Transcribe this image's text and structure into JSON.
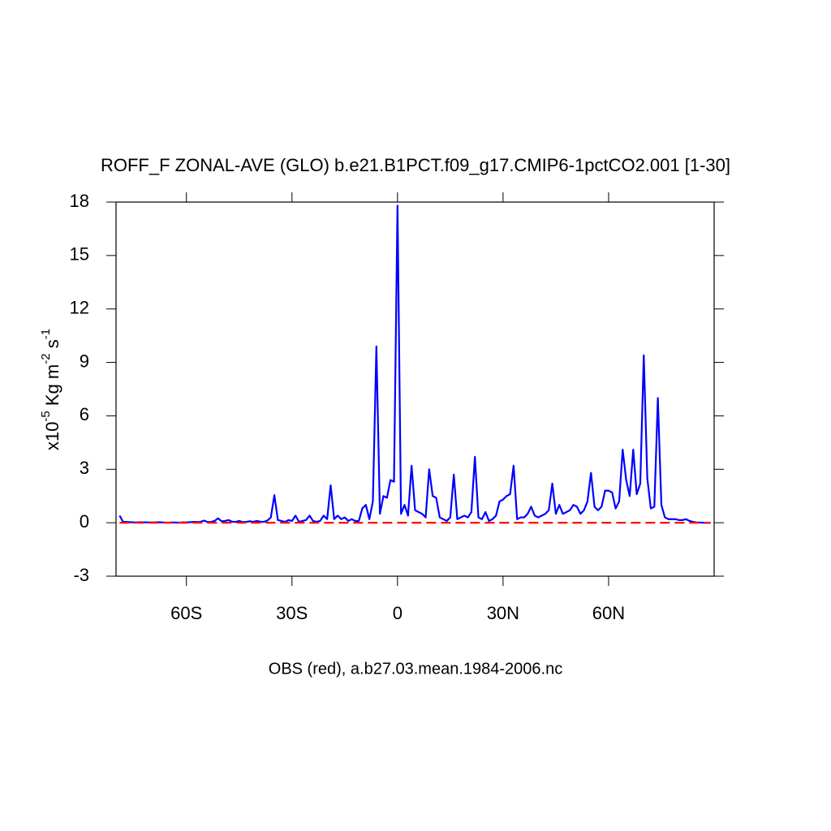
{
  "chart_data": {
    "type": "line",
    "title": "ROFF_F ZONAL-AVE (GLO) b.e21.B1PCT.f09_g17.CMIP6-1pctCO2.001 [1-30]",
    "subtitle": "OBS (red), a.b27.03.mean.1984-2006.nc",
    "ylabel_parts": [
      "x10",
      "-5",
      " Kg m",
      "-2",
      " s",
      "-1"
    ],
    "xlim": [
      -80,
      90
    ],
    "ylim": [
      -3,
      18
    ],
    "xticks": [
      {
        "value": -60,
        "label": "60S"
      },
      {
        "value": -30,
        "label": "30S"
      },
      0,
      {
        "value": 30,
        "label": "30N"
      },
      {
        "value": 60,
        "label": "60N"
      }
    ],
    "yticks": [
      -3,
      0,
      3,
      6,
      9,
      12,
      15,
      18
    ],
    "series": [
      {
        "color": "#0000ff",
        "dashed": false,
        "x": [
          -79,
          -78,
          -77,
          -76,
          -75,
          -74,
          -73,
          -72,
          -71,
          -70,
          -69,
          -68,
          -67,
          -66,
          -65,
          -64,
          -63,
          -62,
          -61,
          -60,
          -59,
          -58,
          -57,
          -56,
          -55,
          -54,
          -53,
          -52,
          -51,
          -50,
          -49,
          -48,
          -47,
          -46,
          -45,
          -44,
          -43,
          -42,
          -41,
          -40,
          -39,
          -38,
          -37,
          -36,
          -35,
          -34,
          -33,
          -32,
          -31,
          -30,
          -29,
          -28,
          -27,
          -26,
          -25,
          -24,
          -23,
          -22,
          -21,
          -20,
          -19,
          -18,
          -17,
          -16,
          -15,
          -14,
          -13,
          -12,
          -11,
          -10,
          -9,
          -8,
          -7,
          -6,
          -5,
          -4,
          -3,
          -2,
          -1,
          0,
          1,
          2,
          3,
          4,
          5,
          6,
          7,
          8,
          9,
          10,
          11,
          12,
          13,
          14,
          15,
          16,
          17,
          18,
          19,
          20,
          21,
          22,
          23,
          24,
          25,
          26,
          27,
          28,
          29,
          30,
          31,
          32,
          33,
          34,
          35,
          36,
          37,
          38,
          39,
          40,
          41,
          42,
          43,
          44,
          45,
          46,
          47,
          48,
          49,
          50,
          51,
          52,
          53,
          54,
          55,
          56,
          57,
          58,
          59,
          60,
          61,
          62,
          63,
          64,
          65,
          66,
          67,
          68,
          69,
          70,
          71,
          72,
          73,
          74,
          75,
          76,
          77,
          78,
          79,
          80,
          81,
          82,
          83,
          84,
          85,
          86,
          87,
          88,
          89
        ],
        "values": [
          0.4,
          0.05,
          0.05,
          0.03,
          0.02,
          0.02,
          0.03,
          0.02,
          0.02,
          0.02,
          0.02,
          0.03,
          0.02,
          0.01,
          0.01,
          0.02,
          0.01,
          0.01,
          0.02,
          0.02,
          0.03,
          0.05,
          0.04,
          0.05,
          0.12,
          0.04,
          0.05,
          0.1,
          0.25,
          0.08,
          0.1,
          0.15,
          0.06,
          0.05,
          0.1,
          0.04,
          0.05,
          0.08,
          0.05,
          0.1,
          0.06,
          0.05,
          0.12,
          0.3,
          1.55,
          0.15,
          0.1,
          0.05,
          0.15,
          0.1,
          0.4,
          0.05,
          0.1,
          0.15,
          0.4,
          0.1,
          0.05,
          0.1,
          0.4,
          0.2,
          2.1,
          0.2,
          0.4,
          0.2,
          0.3,
          0.1,
          0.2,
          0.1,
          0.1,
          0.8,
          1.0,
          0.2,
          1.2,
          9.9,
          0.5,
          1.5,
          1.4,
          2.4,
          2.3,
          17.8,
          0.5,
          1.0,
          0.4,
          3.2,
          0.7,
          0.6,
          0.5,
          0.3,
          3.0,
          1.5,
          1.4,
          0.3,
          0.2,
          0.1,
          0.3,
          2.7,
          0.2,
          0.3,
          0.4,
          0.3,
          0.6,
          3.7,
          0.3,
          0.2,
          0.6,
          0.1,
          0.2,
          0.4,
          1.2,
          1.3,
          1.5,
          1.6,
          3.2,
          0.2,
          0.3,
          0.3,
          0.5,
          0.9,
          0.4,
          0.3,
          0.4,
          0.5,
          0.7,
          2.2,
          0.5,
          1.0,
          0.5,
          0.6,
          0.7,
          1.0,
          0.9,
          0.5,
          0.7,
          1.2,
          2.8,
          0.9,
          0.7,
          0.9,
          1.8,
          1.8,
          1.7,
          0.8,
          1.2,
          4.1,
          2.4,
          1.5,
          4.1,
          1.6,
          2.2,
          9.4,
          2.5,
          0.8,
          0.9,
          7.0,
          1.0,
          0.3,
          0.2,
          0.2,
          0.2,
          0.15,
          0.15,
          0.2,
          0.1,
          0.05,
          0.02,
          0.01,
          0.0,
          0.0,
          0.0
        ]
      },
      {
        "color": "#ff0000",
        "dashed": true,
        "x": [
          -79,
          89
        ],
        "values": [
          0,
          0
        ]
      }
    ]
  }
}
